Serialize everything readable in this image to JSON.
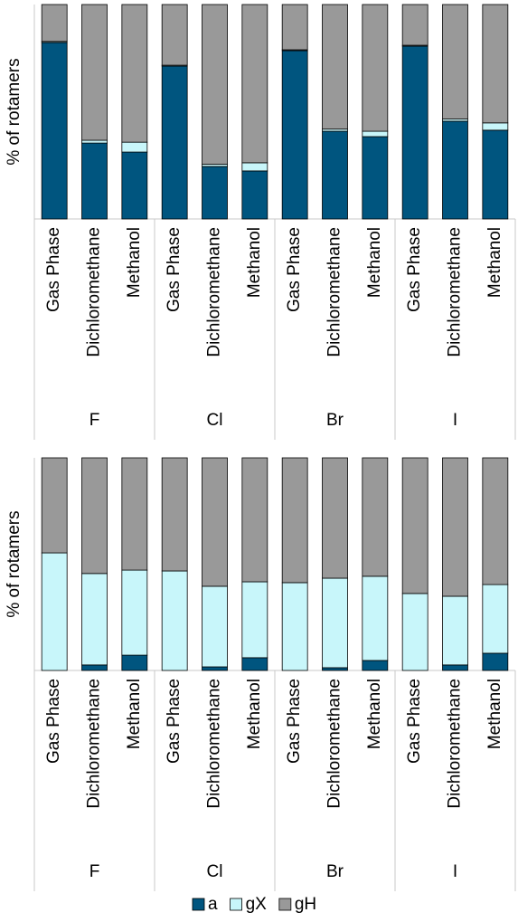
{
  "chart_data": [
    {
      "type": "stacked_bar",
      "ylabel": "% of rotamers",
      "ylim": [
        0,
        100
      ],
      "categories": [
        "Gas Phase",
        "Dichloromethane",
        "Methanol",
        "Gas Phase",
        "Dichloromethane",
        "Methanol",
        "Gas Phase",
        "Dichloromethane",
        "Methanol",
        "Gas Phase",
        "Dichloromethane",
        "Methanol"
      ],
      "groups": [
        "F",
        "Cl",
        "Br",
        "I"
      ],
      "series": [
        {
          "color": "#00557f",
          "values": [
            82.3,
            35.4,
            31.2,
            71.3,
            24.5,
            22.4,
            78.5,
            40.9,
            38.4,
            80.6,
            45.6,
            41.4
          ]
        },
        {
          "color": "#c8f6fa",
          "values": [
            0.5,
            1.3,
            4.6,
            0.4,
            1.0,
            3.8,
            0.4,
            1.0,
            2.5,
            0.4,
            1.0,
            3.4
          ]
        },
        {
          "color": "#999999",
          "values": [
            17.2,
            63.3,
            64.2,
            28.3,
            74.5,
            73.8,
            21.1,
            58.1,
            59.1,
            19.0,
            53.4,
            55.2
          ]
        }
      ]
    },
    {
      "type": "stacked_bar",
      "ylabel": "% of rotamers",
      "ylim": [
        0,
        100
      ],
      "categories": [
        "Gas Phase",
        "Dichloromethane",
        "Methanol",
        "Gas Phase",
        "Dichloromethane",
        "Methanol",
        "Gas Phase",
        "Dichloromethane",
        "Methanol",
        "Gas Phase",
        "Dichloromethane",
        "Methanol"
      ],
      "groups": [
        "F",
        "Cl",
        "Br",
        "I"
      ],
      "series": [
        {
          "name": "a",
          "color": "#00557f",
          "values": [
            0,
            2.6,
            7.2,
            0,
            1.7,
            6.0,
            0,
            1.3,
            4.7,
            0,
            2.6,
            8.1
          ]
        },
        {
          "name": "gX",
          "color": "#c8f6fa",
          "values": [
            55.3,
            43.0,
            40.0,
            46.8,
            37.9,
            35.7,
            41.3,
            42.1,
            39.6,
            36.2,
            32.3,
            32.3
          ]
        },
        {
          "name": "gH",
          "color": "#999999",
          "values": [
            44.7,
            54.4,
            52.8,
            53.2,
            60.4,
            58.3,
            58.7,
            56.6,
            55.7,
            63.8,
            65.1,
            59.6
          ]
        }
      ]
    }
  ]
}
